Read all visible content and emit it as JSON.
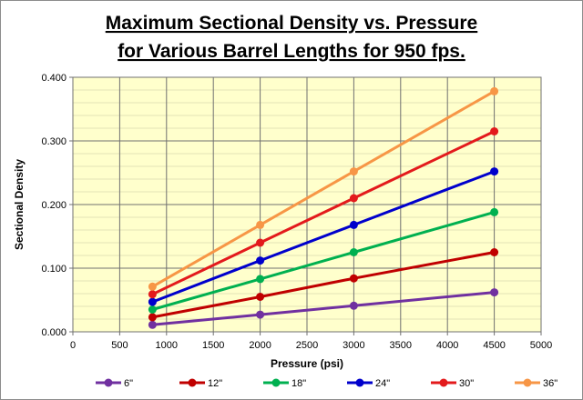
{
  "chart_data": {
    "type": "line",
    "title_lines": [
      "Maximum Sectional Density vs. Pressure",
      "for Various Barrel Lengths for 950 fps."
    ],
    "xlabel": "Pressure (psi)",
    "ylabel": "Sectional Density",
    "xlim": [
      0,
      5000
    ],
    "ylim": [
      0,
      0.4
    ],
    "x_ticks": [
      "0",
      "500",
      "1000",
      "1500",
      "2000",
      "2500",
      "3000",
      "3500",
      "4000",
      "4500",
      "5000"
    ],
    "y_ticks": [
      "0.000",
      "0.100",
      "0.200",
      "0.300",
      "0.400"
    ],
    "grid": true,
    "plot_background": "#ffffcc",
    "legend_position": "bottom",
    "x": [
      850,
      2000,
      3000,
      4500
    ],
    "series": [
      {
        "name": "6\"",
        "color": "#7030a0",
        "values": [
          0.011,
          0.027,
          0.041,
          0.062
        ]
      },
      {
        "name": "12\"",
        "color": "#c00000",
        "values": [
          0.023,
          0.055,
          0.084,
          0.125
        ]
      },
      {
        "name": "18\"",
        "color": "#00b050",
        "values": [
          0.035,
          0.083,
          0.125,
          0.188
        ]
      },
      {
        "name": "24\"",
        "color": "#0000cc",
        "values": [
          0.047,
          0.112,
          0.168,
          0.252
        ]
      },
      {
        "name": "30\"",
        "color": "#e31a1c",
        "values": [
          0.059,
          0.14,
          0.21,
          0.315
        ]
      },
      {
        "name": "36\"",
        "color": "#f79646",
        "values": [
          0.071,
          0.168,
          0.252,
          0.378
        ]
      }
    ]
  }
}
